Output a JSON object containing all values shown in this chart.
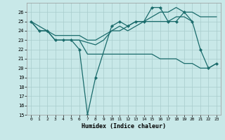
{
  "xlabel": "Humidex (Indice chaleur)",
  "xlim": [
    -0.5,
    23.5
  ],
  "ylim": [
    15,
    27
  ],
  "yticks": [
    15,
    16,
    17,
    18,
    19,
    20,
    21,
    22,
    23,
    24,
    25,
    26
  ],
  "xticks": [
    0,
    1,
    2,
    3,
    4,
    5,
    6,
    7,
    8,
    9,
    10,
    11,
    12,
    13,
    14,
    15,
    16,
    17,
    18,
    19,
    20,
    21,
    22,
    23
  ],
  "background_color": "#c8e8e8",
  "grid_color": "#a8cccc",
  "line_color": "#1a6b6b",
  "lines": [
    {
      "x": [
        0,
        1,
        2,
        3,
        4,
        5,
        6,
        7,
        8,
        10,
        11,
        12,
        13,
        14,
        15,
        16,
        17,
        18,
        19,
        20,
        21,
        22,
        23
      ],
      "y": [
        25,
        24,
        24,
        23,
        23,
        23,
        22,
        15,
        19,
        24.5,
        25,
        24.5,
        25,
        25,
        26.5,
        26.5,
        25,
        25,
        26,
        25,
        22,
        20,
        20.5
      ],
      "marker": true
    },
    {
      "x": [
        3,
        4,
        5,
        6,
        7,
        8,
        9,
        10,
        11,
        12,
        13,
        14,
        15,
        16,
        17,
        18,
        19,
        20,
        21,
        22,
        23
      ],
      "y": [
        23,
        23,
        23,
        23,
        21.5,
        21.5,
        21.5,
        21.5,
        21.5,
        21.5,
        21.5,
        21.5,
        21.5,
        21,
        21,
        21,
        20.5,
        20.5,
        20,
        20,
        20.5
      ],
      "marker": false
    },
    {
      "x": [
        0,
        1,
        2,
        3,
        4,
        5,
        6,
        7,
        8,
        9,
        10,
        11,
        12,
        13,
        14,
        15,
        16,
        17,
        18,
        19,
        20,
        21,
        22,
        23
      ],
      "y": [
        25,
        24,
        24,
        23.5,
        23.5,
        23.5,
        23.5,
        23,
        23,
        23.5,
        24,
        24,
        24.5,
        25,
        25,
        25.5,
        26,
        26,
        26.5,
        26,
        26,
        25.5,
        25.5,
        25.5
      ],
      "marker": false
    },
    {
      "x": [
        0,
        2,
        3,
        4,
        5,
        6,
        8,
        9,
        10,
        11,
        12,
        13,
        14,
        15,
        16,
        17,
        18,
        19,
        20
      ],
      "y": [
        25,
        24,
        23,
        23,
        23,
        23,
        22.5,
        23,
        24,
        24.5,
        24,
        24.5,
        25,
        25,
        25,
        25,
        25.5,
        25.5,
        25
      ],
      "marker": false
    }
  ]
}
